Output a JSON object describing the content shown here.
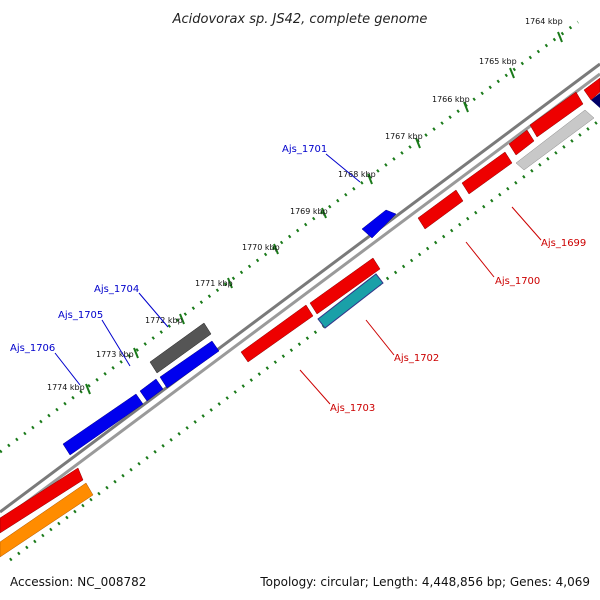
{
  "title": "Acidovorax sp. JS42, complete genome",
  "footer": {
    "accession": "Accession: NC_008782",
    "summary": "Topology: circular; Length: 4,448,856 bp; Genes: 4,069"
  },
  "colors": {
    "forward_label": "#0000cc",
    "reverse_label": "#cc0000",
    "backbone": "#808080",
    "tick": "#1a7a1a"
  },
  "ticks": [
    {
      "label": "1764 kbp"
    },
    {
      "label": "1765 kbp"
    },
    {
      "label": "1766 kbp"
    },
    {
      "label": "1767 kbp"
    },
    {
      "label": "1768 kbp"
    },
    {
      "label": "1769 kbp"
    },
    {
      "label": "1770 kbp"
    },
    {
      "label": "1771 kbp"
    },
    {
      "label": "1772 kbp"
    },
    {
      "label": "1773 kbp"
    },
    {
      "label": "1774 kbp"
    }
  ],
  "gene_labels": [
    {
      "text": "Ajs_1701",
      "strand": "forward"
    },
    {
      "text": "Ajs_1704",
      "strand": "forward"
    },
    {
      "text": "Ajs_1705",
      "strand": "forward"
    },
    {
      "text": "Ajs_1706",
      "strand": "forward"
    },
    {
      "text": "Ajs_1699",
      "strand": "reverse"
    },
    {
      "text": "Ajs_1700",
      "strand": "reverse"
    },
    {
      "text": "Ajs_1702",
      "strand": "reverse"
    },
    {
      "text": "Ajs_1703",
      "strand": "reverse"
    }
  ]
}
